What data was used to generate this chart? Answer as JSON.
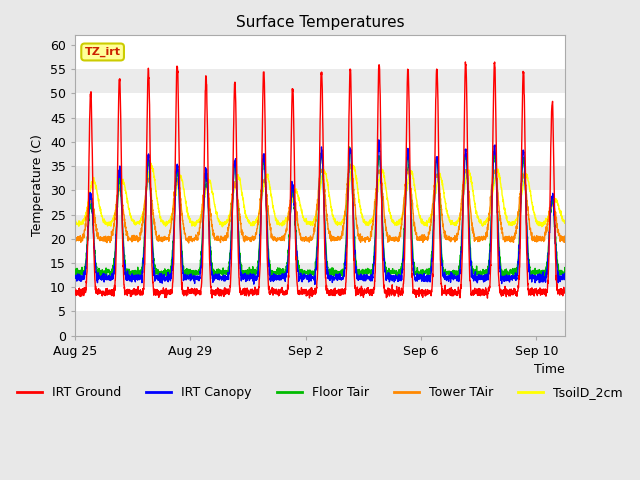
{
  "title": "Surface Temperatures",
  "ylabel": "Temperature (C)",
  "xlabel": "Time",
  "ylim": [
    0,
    62
  ],
  "yticks": [
    0,
    5,
    10,
    15,
    20,
    25,
    30,
    35,
    40,
    45,
    50,
    55,
    60
  ],
  "fig_bg_color": "#e8e8e8",
  "plot_bg_color": "#ffffff",
  "band_color": "#ebebeb",
  "annotation_text": "TZ_irt",
  "annotation_box_facecolor": "#ffff99",
  "annotation_box_edgecolor": "#cccc00",
  "annotation_text_color": "#cc2200",
  "series": {
    "IRT Ground": {
      "color": "#ff0000",
      "lw": 1.0
    },
    "IRT Canopy": {
      "color": "#0000ff",
      "lw": 1.0
    },
    "Floor Tair": {
      "color": "#00bb00",
      "lw": 1.0
    },
    "Tower TAir": {
      "color": "#ff8800",
      "lw": 1.0
    },
    "TsoilD_2cm": {
      "color": "#ffff00",
      "lw": 1.0
    }
  },
  "x_tick_labels": [
    "Aug 25",
    "Aug 29",
    "Sep 2",
    "Sep 6",
    "Sep 10"
  ],
  "x_tick_positions": [
    0,
    4,
    8,
    12,
    16
  ],
  "num_days": 17,
  "samples_per_day": 144
}
